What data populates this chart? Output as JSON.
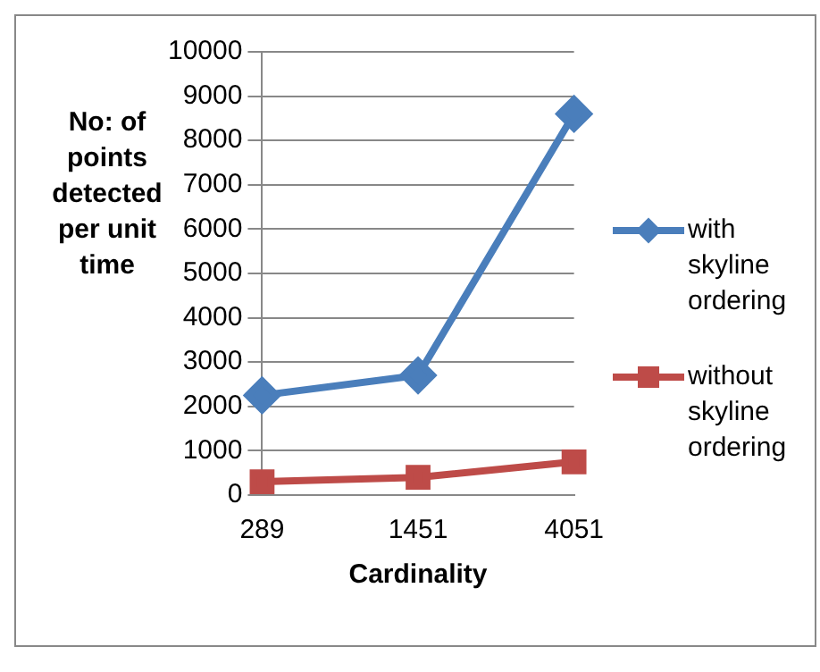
{
  "chart_data": {
    "type": "line",
    "xlabel": "Cardinality",
    "ylabel": "No: of points detected per unit time",
    "categories": [
      "289",
      "1451",
      "4051"
    ],
    "series": [
      {
        "name": "with skyline ordering",
        "color": "#4a7ebb",
        "marker": "diamond",
        "values": [
          2250,
          2700,
          8600
        ]
      },
      {
        "name": "without skyline ordering",
        "color": "#be4b48",
        "marker": "square",
        "values": [
          300,
          400,
          750
        ]
      }
    ],
    "ylim": [
      0,
      10000
    ],
    "yticks": [
      0,
      1000,
      2000,
      3000,
      4000,
      5000,
      6000,
      7000,
      8000,
      9000,
      10000
    ],
    "grid": "y",
    "legend": "right"
  }
}
